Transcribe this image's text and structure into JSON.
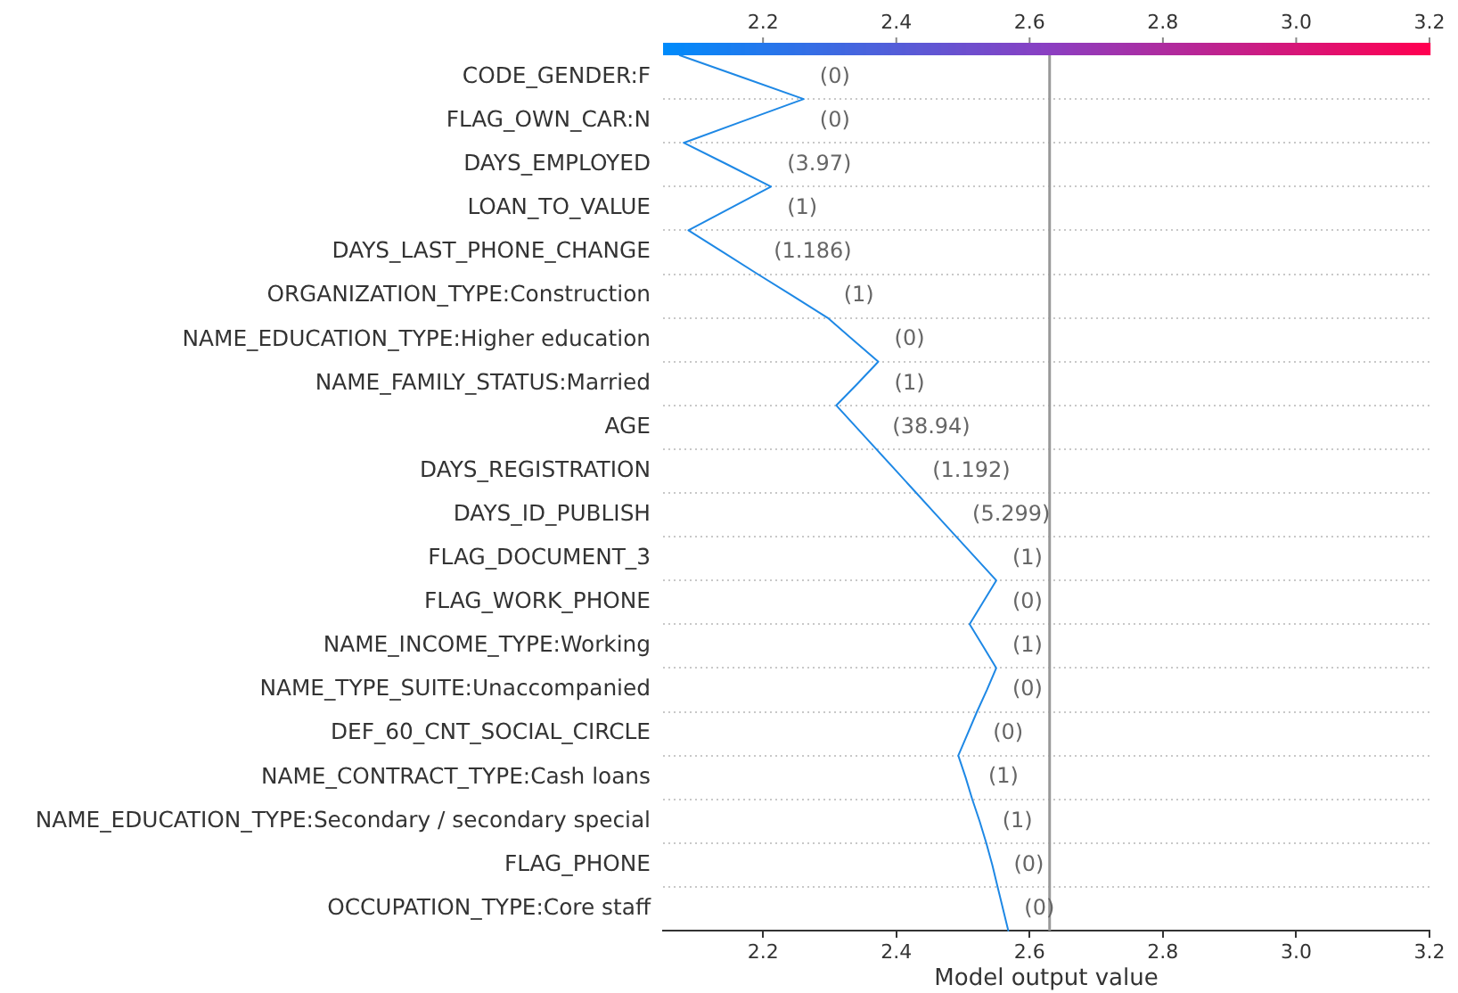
{
  "chart_data": {
    "type": "line",
    "orientation": "horizontal",
    "xlabel": "Model output value",
    "categories": [
      null,
      "CODE_GENDER:F",
      null,
      "FLAG_OWN_CAR:N",
      null,
      "DAYS_EMPLOYED",
      null,
      "LOAN_TO_VALUE",
      null,
      "DAYS_LAST_PHONE_CHANGE",
      null,
      "ORGANIZATION_TYPE:Construction",
      null,
      "NAME_EDUCATION_TYPE:Higher education",
      null,
      "NAME_FAMILY_STATUS:Married",
      null,
      "AGE",
      null,
      "DAYS_REGISTRATION",
      null,
      "DAYS_ID_PUBLISH",
      null,
      "FLAG_DOCUMENT_3",
      null,
      "FLAG_WORK_PHONE",
      null,
      "NAME_INCOME_TYPE:Working",
      null,
      "NAME_TYPE_SUITE:Unaccompanied",
      null,
      "DEF_60_CNT_SOCIAL_CIRCLE",
      null,
      "NAME_CONTRACT_TYPE:Cash loans",
      null,
      "NAME_EDUCATION_TYPE:Secondary / secondary special",
      null,
      "FLAG_PHONE",
      null,
      "OCCUPATION_TYPE:Core staff",
      null
    ],
    "values": [
      2.075,
      2.168,
      2.261,
      2.171,
      2.081,
      2.147,
      2.212,
      2.15,
      2.088,
      2.14,
      2.192,
      2.245,
      2.297,
      2.335,
      2.373,
      2.342,
      2.31,
      2.34,
      2.37,
      2.4,
      2.43,
      2.46,
      2.49,
      2.52,
      2.55,
      2.53,
      2.51,
      2.53,
      2.55,
      2.536,
      2.521,
      2.507,
      2.493,
      2.504,
      2.514,
      2.525,
      2.535,
      2.544,
      2.552,
      2.56,
      2.568
    ],
    "color": "#1e88e5",
    "xlim": [
      2.05,
      3.2
    ],
    "xticks": [
      2.2,
      2.4,
      2.6,
      2.8,
      {
        "value": 3,
        "label": "3.0"
      },
      3.2
    ],
    "clim": [
      2.05,
      3.2
    ],
    "cticks": [
      2.2,
      2.4,
      2.6,
      2.8,
      {
        "value": 3,
        "label": "3.0"
      },
      3.2
    ],
    "ref_lines": [
      {
        "axis": "x",
        "value": 2.63,
        "color": "#999999"
      }
    ],
    "grid": "y",
    "marker": "none",
    "annotations": [
      "(0)",
      "(0)",
      "(3.97)",
      "(1)",
      "(1.186)",
      "(1)",
      "(0)",
      "(1)",
      "(38.94)",
      "(1.192)",
      "(5.299)",
      "(1)",
      "(0)",
      "(1)",
      "(0)",
      "(0)",
      "(1)",
      "(1)",
      "(0)",
      "(0)"
    ]
  }
}
